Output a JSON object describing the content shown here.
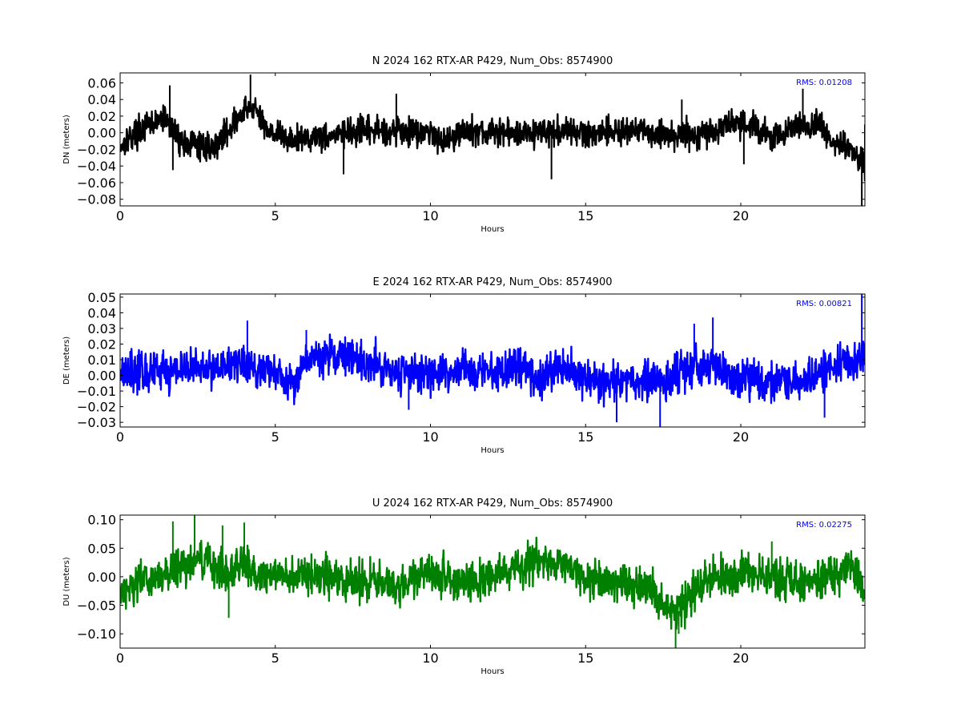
{
  "chart_data": [
    {
      "type": "line",
      "title": "N 2024 162 RTX-AR  P429, Num_Obs: 8574900",
      "xlabel": "Hours",
      "ylabel": "DN (meters)",
      "xlim": [
        0,
        24
      ],
      "ylim": [
        -0.088,
        0.072
      ],
      "xticks": [
        0,
        5,
        10,
        15,
        20
      ],
      "yticks": [
        -0.08,
        -0.06,
        -0.04,
        -0.02,
        0.0,
        0.02,
        0.04,
        0.06
      ],
      "ytick_labels": [
        "−0.08",
        "−0.06",
        "−0.04",
        "−0.02",
        "0.00",
        "0.02",
        "0.04",
        "0.06"
      ],
      "annotation": "RMS:  0.01208",
      "annotation_color": "#0000ff",
      "series_color": "#000000",
      "noise_amp": 0.012,
      "spikes": [
        [
          1.6,
          0.057
        ],
        [
          1.7,
          -0.045
        ],
        [
          4.2,
          0.07
        ],
        [
          7.2,
          -0.05
        ],
        [
          8.9,
          0.047
        ],
        [
          13.9,
          -0.056
        ],
        [
          18.1,
          0.04
        ],
        [
          20.1,
          -0.038
        ],
        [
          22.0,
          0.053
        ],
        [
          23.9,
          -0.088
        ],
        [
          24.0,
          0.01
        ]
      ],
      "series": [
        {
          "x": [
            0,
            0.5,
            1.0,
            1.4,
            1.6,
            2.0,
            2.5,
            3.0,
            3.5,
            4.0,
            4.3,
            4.6,
            5.0,
            5.5,
            6.0,
            7.0,
            8.0,
            9.0,
            10.0,
            10.5,
            11.0,
            12.0,
            13.0,
            14.0,
            15.0,
            16.0,
            17.0,
            18.0,
            19.0,
            19.5,
            20.0,
            20.5,
            21.0,
            22.0,
            22.5,
            23.0,
            23.5,
            24.0
          ],
          "y": [
            -0.015,
            0.0,
            0.01,
            0.018,
            0.01,
            -0.012,
            -0.015,
            -0.018,
            0.005,
            0.025,
            0.032,
            0.01,
            0.0,
            -0.01,
            -0.005,
            -0.003,
            0.002,
            0.003,
            0.0,
            -0.01,
            0.002,
            0.0,
            0.0,
            0.002,
            0.0,
            0.002,
            0.0,
            -0.003,
            0.0,
            0.01,
            0.013,
            0.005,
            -0.005,
            0.008,
            0.01,
            -0.012,
            -0.02,
            -0.04
          ]
        }
      ]
    },
    {
      "type": "line",
      "title": "E 2024 162 RTX-AR  P429, Num_Obs: 8574900",
      "xlabel": "Hours",
      "ylabel": "DE (meters)",
      "xlim": [
        0,
        24
      ],
      "ylim": [
        -0.033,
        0.052
      ],
      "xticks": [
        0,
        5,
        10,
        15,
        20
      ],
      "yticks": [
        -0.03,
        -0.02,
        -0.01,
        0.0,
        0.01,
        0.02,
        0.03,
        0.04,
        0.05
      ],
      "ytick_labels": [
        "−0.03",
        "−0.02",
        "−0.01",
        "0.00",
        "0.01",
        "0.02",
        "0.03",
        "0.04",
        "0.05"
      ],
      "annotation": "RMS:  0.00821",
      "annotation_color": "#0000ff",
      "series_color": "#0000ff",
      "noise_amp": 0.009,
      "spikes": [
        [
          4.1,
          0.035
        ],
        [
          6.0,
          0.029
        ],
        [
          9.3,
          -0.022
        ],
        [
          16.0,
          -0.03
        ],
        [
          17.4,
          -0.033
        ],
        [
          18.5,
          0.033
        ],
        [
          19.1,
          0.037
        ],
        [
          22.7,
          -0.027
        ],
        [
          23.9,
          0.052
        ]
      ],
      "series": [
        {
          "x": [
            0,
            1,
            2,
            3,
            3.5,
            4,
            5,
            5.5,
            6,
            7,
            7.5,
            8,
            9,
            10,
            11,
            12,
            13,
            13.5,
            14,
            15,
            16,
            17,
            17.5,
            18,
            19,
            19.5,
            20,
            21,
            22,
            23,
            24
          ],
          "y": [
            0.004,
            0.002,
            0.004,
            0.005,
            0.008,
            0.006,
            0.002,
            -0.005,
            0.01,
            0.013,
            0.01,
            0.008,
            0.003,
            0.0,
            0.003,
            0.003,
            0.005,
            -0.003,
            0.007,
            -0.002,
            -0.004,
            -0.003,
            -0.005,
            0.002,
            0.008,
            0.0,
            -0.003,
            -0.004,
            -0.003,
            0.004,
            0.012
          ]
        }
      ]
    },
    {
      "type": "line",
      "title": "U 2024 162 RTX-AR  P429, Num_Obs: 8574900",
      "xlabel": "Hours",
      "ylabel": "DU (meters)",
      "xlim": [
        0,
        24
      ],
      "ylim": [
        -0.125,
        0.108
      ],
      "xticks": [
        0,
        5,
        10,
        15,
        20
      ],
      "yticks": [
        -0.1,
        -0.05,
        0.0,
        0.05,
        0.1
      ],
      "ytick_labels": [
        "−0.10",
        "−0.05",
        "0.00",
        "0.05",
        "0.10"
      ],
      "annotation": "RMS:  0.02275",
      "annotation_color": "#0000ff",
      "series_color": "#008000",
      "noise_amp": 0.024,
      "spikes": [
        [
          1.7,
          0.097
        ],
        [
          2.4,
          0.108
        ],
        [
          3.5,
          -0.072
        ],
        [
          3.3,
          0.09
        ],
        [
          4.0,
          0.095
        ],
        [
          17.9,
          -0.125
        ],
        [
          18.0,
          -0.1
        ],
        [
          21.0,
          0.062
        ]
      ],
      "series": [
        {
          "x": [
            0,
            0.5,
            1,
            1.5,
            2,
            2.5,
            3,
            3.5,
            4,
            4.5,
            5,
            6,
            7,
            8,
            9,
            10,
            10.5,
            11,
            12,
            13,
            13.5,
            14,
            15,
            16,
            17,
            17.5,
            18,
            18.5,
            19,
            20,
            21,
            22,
            23,
            23.5,
            24
          ],
          "y": [
            -0.025,
            -0.01,
            -0.005,
            0.0,
            0.02,
            0.03,
            0.02,
            0.01,
            0.025,
            0.005,
            0.0,
            0.0,
            0.0,
            -0.01,
            -0.015,
            0.01,
            0.0,
            -0.01,
            0.0,
            0.02,
            0.03,
            0.025,
            0.0,
            -0.01,
            -0.015,
            -0.045,
            -0.06,
            -0.02,
            -0.005,
            0.005,
            0.0,
            -0.01,
            0.0,
            0.02,
            -0.02
          ]
        }
      ]
    }
  ]
}
